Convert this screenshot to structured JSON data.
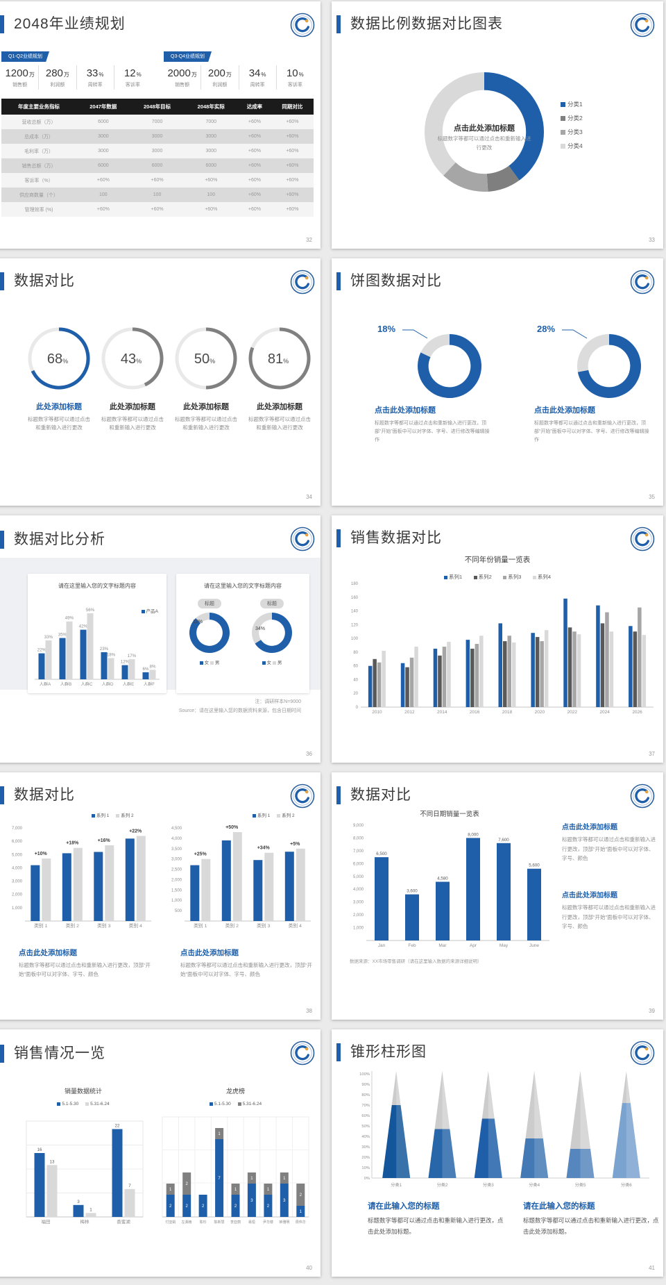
{
  "page": {
    "background": "#ebebeb"
  },
  "colors": {
    "accent_blue": "#1f5fa9",
    "dark_text": "#3a3a3a",
    "gray_text": "#8f8f8f",
    "light_gray": "#d9d9d9",
    "mid_gray": "#a6a6a6",
    "dark_gray": "#595959",
    "table_header_bg": "#1b1b1b"
  },
  "slides": [
    {
      "title": "2048年业绩规划",
      "page": "32",
      "groups": [
        {
          "badge": "Q1-Q2业绩规划",
          "stats": [
            {
              "v": "1200",
              "u": "万",
              "l": "销售额"
            },
            {
              "v": "280",
              "u": "万",
              "l": "利润额"
            },
            {
              "v": "33",
              "u": "%",
              "l": "周转率"
            },
            {
              "v": "12",
              "u": "%",
              "l": "客诉率"
            }
          ]
        },
        {
          "badge": "Q3-Q4业绩规划",
          "stats": [
            {
              "v": "2000",
              "u": "万",
              "l": "销售额"
            },
            {
              "v": "200",
              "u": "万",
              "l": "利润额"
            },
            {
              "v": "34",
              "u": "%",
              "l": "周转率"
            },
            {
              "v": "10",
              "u": "%",
              "l": "客诉率"
            }
          ]
        }
      ],
      "table": {
        "headers": [
          "年度主要业务指标",
          "2047年数据",
          "2048年目标",
          "2048年实际",
          "达成率",
          "同期对比"
        ],
        "rows": [
          [
            "营收总额（万）",
            "6000",
            "7000",
            "7000",
            "+60%",
            "+60%"
          ],
          [
            "总成本（万）",
            "3000",
            "3000",
            "3000",
            "+60%",
            "+60%"
          ],
          [
            "毛利率（万）",
            "3000",
            "3000",
            "3000",
            "+60%",
            "+60%"
          ],
          [
            "销售总额（万）",
            "6000",
            "6000",
            "6000",
            "+60%",
            "+60%"
          ],
          [
            "客诉率（%）",
            "+60%",
            "+60%",
            "+60%",
            "+60%",
            "+60%"
          ],
          [
            "供应商数量（个）",
            "100",
            "100",
            "100",
            "+60%",
            "+60%"
          ],
          [
            "管理效率 (%)",
            "+60%",
            "+60%",
            "+60%",
            "+60%",
            "+60%"
          ]
        ]
      }
    },
    {
      "title": "数据比例数据对比图表",
      "page": "33",
      "center_title": "点击此处添加标题",
      "center_desc": "标题数字等都可以通过点击和重新输入进行更改"
    },
    {
      "title": "数据对比",
      "page": "34",
      "item_title": "此处添加标题",
      "item_desc": "标题数字等都可以通过点击和重新输入进行更改"
    },
    {
      "title": "饼图数据对比",
      "page": "35",
      "item_title": "点击此处添加标题",
      "item_desc": "标题数字等都可以通过点击和重新输入进行更改，顶部“开始”面板中可以对字体、字号、进行修改等编辑操作"
    },
    {
      "title": "数据对比分析",
      "page": "36",
      "card_title": "请在这里输入您的文字标题内容",
      "pill": "标题",
      "legendB": [
        "女",
        "男"
      ],
      "note1": "注：调研样本N=9000",
      "note2": "Source：请在这里输入您的数据资料来源，包含日期时间"
    },
    {
      "title": "销售数据对比",
      "page": "37"
    },
    {
      "title": "数据对比",
      "page": "38",
      "block_title": "点击此处添加标题",
      "block_desc": "标题数字等都可以通过点击和重新输入进行更改，顶部“开始”面板中可以对字体、字号、颜色"
    },
    {
      "title": "数据对比",
      "page": "39",
      "block_title": "点击此处添加标题",
      "block_desc": "标题数字等都可以通过点击和重新输入进行更改，顶部“开始”面板中可以对字体、字号、颜色",
      "note": "数据来源：XX市场零售调研（请在这里输入数据的来源详细说明）"
    },
    {
      "title": "销售情况一览",
      "page": "40"
    },
    {
      "title": "锥形柱形图",
      "page": "41",
      "block_title": "请在此输入您的标题",
      "block_desc": "标题数字等都可以通过点击和重新输入进行更改，点击此处添加标题。"
    }
  ],
  "chart_data": [
    {
      "type": "donut",
      "values": [
        40,
        9,
        13,
        38
      ],
      "colors": [
        "#1f5fa9",
        "#7f7f7f",
        "#a6a6a6",
        "#d9d9d9"
      ],
      "inner": 0.7,
      "legend": [
        "分类1",
        "分类2",
        "分类3",
        "分类4"
      ]
    },
    {
      "type": "gauge",
      "value": 68,
      "color": "#1f5fa9",
      "track": "#e9e9e9"
    },
    {
      "type": "gauge",
      "value": 43,
      "color": "#808080",
      "track": "#e9e9e9"
    },
    {
      "type": "gauge",
      "value": 50,
      "color": "#808080",
      "track": "#e9e9e9"
    },
    {
      "type": "gauge",
      "value": 81,
      "color": "#808080",
      "track": "#e9e9e9"
    },
    {
      "type": "donut",
      "values": [
        82,
        18
      ],
      "colors": [
        "#1f5fa9",
        "#dcdcdc"
      ],
      "inner": 0.66,
      "label": "18%"
    },
    {
      "type": "donut",
      "values": [
        72,
        28
      ],
      "colors": [
        "#1f5fa9",
        "#dcdcdc"
      ],
      "inner": 0.66,
      "label": "28%"
    },
    {
      "type": "bar",
      "categories": [
        "人群A",
        "人群B",
        "人群C",
        "人群D",
        "人群E",
        "人群F"
      ],
      "series": [
        {
          "name": "产品A",
          "color": "#1f5fa9",
          "values": [
            22,
            35,
            42,
            23,
            12,
            6
          ]
        },
        {
          "name": "",
          "color": "#d9d9d9",
          "values": [
            33,
            49,
            56,
            18,
            17,
            8
          ]
        }
      ],
      "ymax": 60,
      "bar_labels": "percent",
      "bw": 9,
      "gi": 1,
      "cf": 6.2,
      "m": [
        16,
        4,
        14,
        4
      ]
    },
    {
      "type": "donut",
      "values": [
        88,
        12
      ],
      "colors": [
        "#1f5fa9",
        "#d9d9d9"
      ],
      "inner": 0.65,
      "label": "12%"
    },
    {
      "type": "donut",
      "values": [
        66,
        34
      ],
      "colors": [
        "#1f5fa9",
        "#d9d9d9"
      ],
      "inner": 0.65,
      "label": "34%"
    },
    {
      "type": "bar",
      "title": "不同年份销量一览表",
      "categories": [
        "2010",
        "2012",
        "2014",
        "2016",
        "2018",
        "2020",
        "2022",
        "2024",
        "2026"
      ],
      "yticks": [
        180,
        160,
        140,
        120,
        100,
        80,
        60,
        40,
        20,
        0
      ],
      "ymax": 180,
      "bw": 5.5,
      "gi": 1,
      "m": [
        6,
        4,
        14,
        26
      ],
      "series": [
        {
          "name": "系列1",
          "color": "#1f5fa9",
          "values": [
            60,
            64,
            85,
            98,
            122,
            108,
            158,
            148,
            118
          ]
        },
        {
          "name": "系列2",
          "color": "#595959",
          "values": [
            70,
            58,
            75,
            85,
            96,
            102,
            116,
            122,
            110
          ]
        },
        {
          "name": "系列3",
          "color": "#a6a6a6",
          "values": [
            65,
            72,
            88,
            92,
            104,
            96,
            110,
            138,
            145
          ]
        },
        {
          "name": "系列4",
          "color": "#d9d9d9",
          "values": [
            82,
            88,
            95,
            104,
            94,
            112,
            106,
            110,
            105
          ]
        }
      ]
    },
    {
      "type": "bar",
      "categories": [
        "类别 1",
        "类别 2",
        "类别 3",
        "类别 4"
      ],
      "yticks": [
        7000,
        6000,
        5000,
        4000,
        3000,
        2000,
        1000
      ],
      "ymax": 7000,
      "fmt": "comma",
      "series": [
        {
          "name": "系列 1",
          "color": "#1f5fa9",
          "values": [
            4200,
            5100,
            5200,
            6200
          ]
        },
        {
          "name": "系列 2",
          "color": "#d9d9d9",
          "values": [
            4700,
            5500,
            5700,
            6400
          ]
        }
      ],
      "group_labels": [
        "+10%",
        "+18%",
        "+16%",
        "+22%"
      ],
      "bw": 13,
      "gi": 3,
      "cf": 6.8,
      "m": [
        14,
        4,
        14,
        28
      ]
    },
    {
      "type": "bar",
      "categories": [
        "类别 1",
        "类别 2",
        "类别 3",
        "类别 4"
      ],
      "yticks": [
        4500,
        4000,
        3500,
        3000,
        2500,
        2000,
        1500,
        1000,
        500
      ],
      "ymax": 4500,
      "fmt": "comma",
      "series": [
        {
          "name": "系列 1",
          "color": "#1f5fa9",
          "values": [
            2700,
            3900,
            2950,
            3350
          ]
        },
        {
          "name": "系列 2",
          "color": "#d9d9d9",
          "values": [
            3000,
            4300,
            3300,
            3500
          ]
        }
      ],
      "group_labels": [
        "+25%",
        "+50%",
        "+34%",
        "+5%"
      ],
      "bw": 13,
      "gi": 3,
      "cf": 6.8,
      "m": [
        14,
        4,
        14,
        28
      ]
    },
    {
      "type": "bar",
      "title": "不同日期销量一览表",
      "categories": [
        "Jan",
        "Feb",
        "Mar",
        "Apr",
        "May",
        "June"
      ],
      "yticks": [
        9000,
        8000,
        7000,
        6000,
        5000,
        4000,
        3000,
        2000,
        1000
      ],
      "ymax": 9000,
      "fmt": "comma",
      "series": [
        {
          "name": "",
          "color": "#1f5fa9",
          "values": [
            6500,
            3600,
            4580,
            8000,
            7600,
            5600
          ]
        }
      ],
      "bar_labels": "given",
      "value_labels": [
        "6,500",
        "3,600",
        "4,580",
        "8,000",
        "7,600",
        "5,600"
      ],
      "lc": "#595959",
      "bw": 20,
      "m": [
        12,
        4,
        14,
        30
      ]
    },
    {
      "type": "bar",
      "title": "销量数据统计",
      "legend": [
        "5.1-5.30",
        "5.31-6.24"
      ],
      "categories": [
        "福田",
        "梅林",
        "香蜜湖"
      ],
      "series": [
        {
          "name": "5.1-5.30",
          "color": "#1f5fa9",
          "values": [
            16,
            3,
            22
          ]
        },
        {
          "name": "5.31-6.24",
          "color": "#d9d9d9",
          "values": [
            13,
            1,
            7
          ]
        }
      ],
      "ymax": 24,
      "bar_labels": "value",
      "lc": "#595959",
      "bw": 15,
      "gi": 3,
      "box": true,
      "cf": 6.5,
      "m": [
        14,
        4,
        16,
        8
      ]
    },
    {
      "type": "stacked",
      "title": "龙虎榜",
      "legend": [
        "5.1-5.30",
        "5.31-6.24"
      ],
      "categories": [
        "付亚娟",
        "左湘南",
        "陈珍",
        "陈新慧",
        "李亚丽",
        "易桓",
        "尹华楼",
        "钟雅明",
        "周伟华"
      ],
      "series": [
        {
          "name": "5.1-5.30",
          "color": "#1f5fa9",
          "values": [
            2,
            2,
            2,
            7,
            2,
            3,
            2,
            3,
            1
          ]
        },
        {
          "name": "5.31-6.24",
          "color": "#808080",
          "values": [
            1,
            2,
            0,
            1,
            1,
            1,
            1,
            1,
            2
          ]
        }
      ],
      "ymax": 9,
      "bw": 12,
      "cf": 5,
      "m": [
        8,
        2,
        16,
        2
      ]
    },
    {
      "type": "cone",
      "categories": [
        "分类1",
        "分类2",
        "分类3",
        "分类4",
        "分类5",
        "分类6"
      ],
      "values": [
        70,
        47,
        57,
        38,
        28,
        72
      ],
      "colors": [
        "#14569b",
        "#2766a9",
        "#1f5fa9",
        "#4379b4",
        "#5586bd",
        "#7ba3d0"
      ],
      "yticks": [
        100,
        90,
        80,
        70,
        60,
        50,
        40,
        30,
        20,
        10,
        0
      ]
    }
  ]
}
